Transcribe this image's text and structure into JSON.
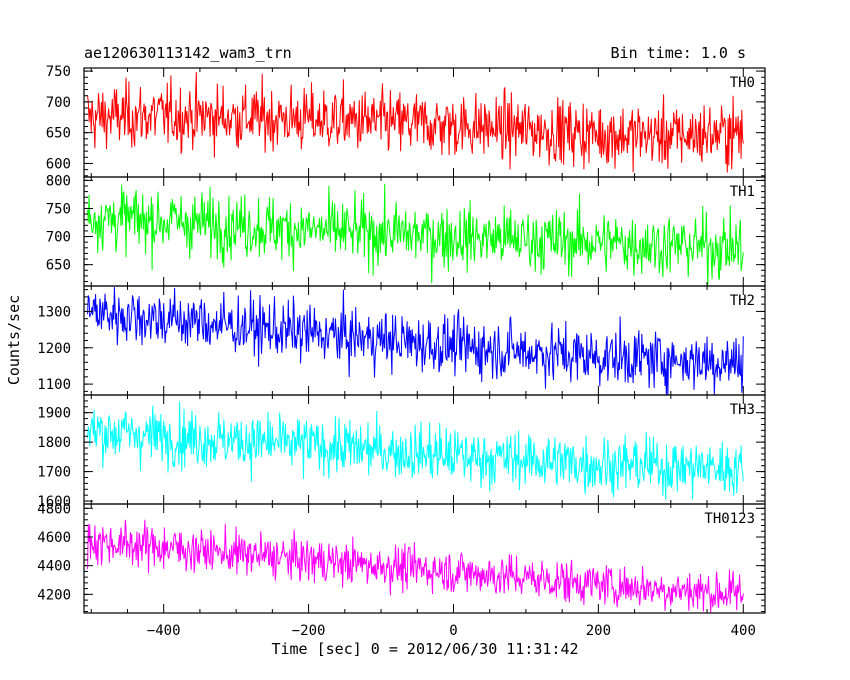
{
  "chart_data": {
    "type": "line",
    "title": "ae120630113142_wam3_trn",
    "subtitle": "Bin time: 1.0 s",
    "xlabel": "Time [sec] 0 = 2012/06/30 11:31:42",
    "ylabel": "Counts/sec",
    "xlim": [
      -510,
      430
    ],
    "x_ticks": [
      -400,
      -200,
      0,
      200,
      400
    ],
    "x_tick_labels": [
      "−400",
      "−200",
      "0",
      "200",
      "400"
    ],
    "data_x_range": [
      -505,
      400
    ],
    "bin_time": 1.0,
    "panels": [
      {
        "name": "TH0",
        "color": "#ff0000",
        "ylim": [
          578,
          755
        ],
        "y_ticks": [
          600,
          650,
          700,
          750
        ],
        "y_tick_labels": [
          "600",
          "650",
          "700",
          "750"
        ],
        "trend": [
          [
            -505,
            675
          ],
          [
            -400,
            678
          ],
          [
            -200,
            672
          ],
          [
            0,
            662
          ],
          [
            200,
            648
          ],
          [
            300,
            645
          ],
          [
            400,
            650
          ]
        ],
        "noise": 26
      },
      {
        "name": "TH1",
        "color": "#00ff00",
        "ylim": [
          612,
          806
        ],
        "y_ticks": [
          650,
          700,
          750,
          800
        ],
        "y_tick_labels": [
          "650",
          "700",
          "750",
          "800"
        ],
        "trend": [
          [
            -505,
            735
          ],
          [
            -400,
            728
          ],
          [
            -200,
            712
          ],
          [
            0,
            700
          ],
          [
            200,
            690
          ],
          [
            400,
            680
          ]
        ],
        "noise": 28
      },
      {
        "name": "TH2",
        "color": "#0000ff",
        "ylim": [
          1070,
          1370
        ],
        "y_ticks": [
          1100,
          1200,
          1300
        ],
        "y_tick_labels": [
          "1100",
          "1200",
          "1300"
        ],
        "trend": [
          [
            -505,
            1300
          ],
          [
            -400,
            1280
          ],
          [
            -200,
            1240
          ],
          [
            0,
            1205
          ],
          [
            200,
            1175
          ],
          [
            400,
            1160
          ]
        ],
        "noise": 40
      },
      {
        "name": "TH3",
        "color": "#00ffff",
        "ylim": [
          1590,
          1960
        ],
        "y_ticks": [
          1600,
          1700,
          1800,
          1900
        ],
        "y_tick_labels": [
          "1600",
          "1700",
          "1800",
          "1900"
        ],
        "trend": [
          [
            -505,
            1840
          ],
          [
            -400,
            1820
          ],
          [
            -200,
            1790
          ],
          [
            0,
            1755
          ],
          [
            200,
            1725
          ],
          [
            400,
            1710
          ]
        ],
        "noise": 48
      },
      {
        "name": "TH0123",
        "color": "#ff00ff",
        "ylim": [
          4070,
          4830
        ],
        "y_ticks": [
          4200,
          4400,
          4600,
          4800
        ],
        "y_tick_labels": [
          "4200",
          "4400",
          "4600",
          "4800"
        ],
        "trend": [
          [
            -505,
            4570
          ],
          [
            -400,
            4530
          ],
          [
            -200,
            4440
          ],
          [
            0,
            4360
          ],
          [
            200,
            4270
          ],
          [
            400,
            4200
          ]
        ],
        "noise": 75
      }
    ]
  }
}
